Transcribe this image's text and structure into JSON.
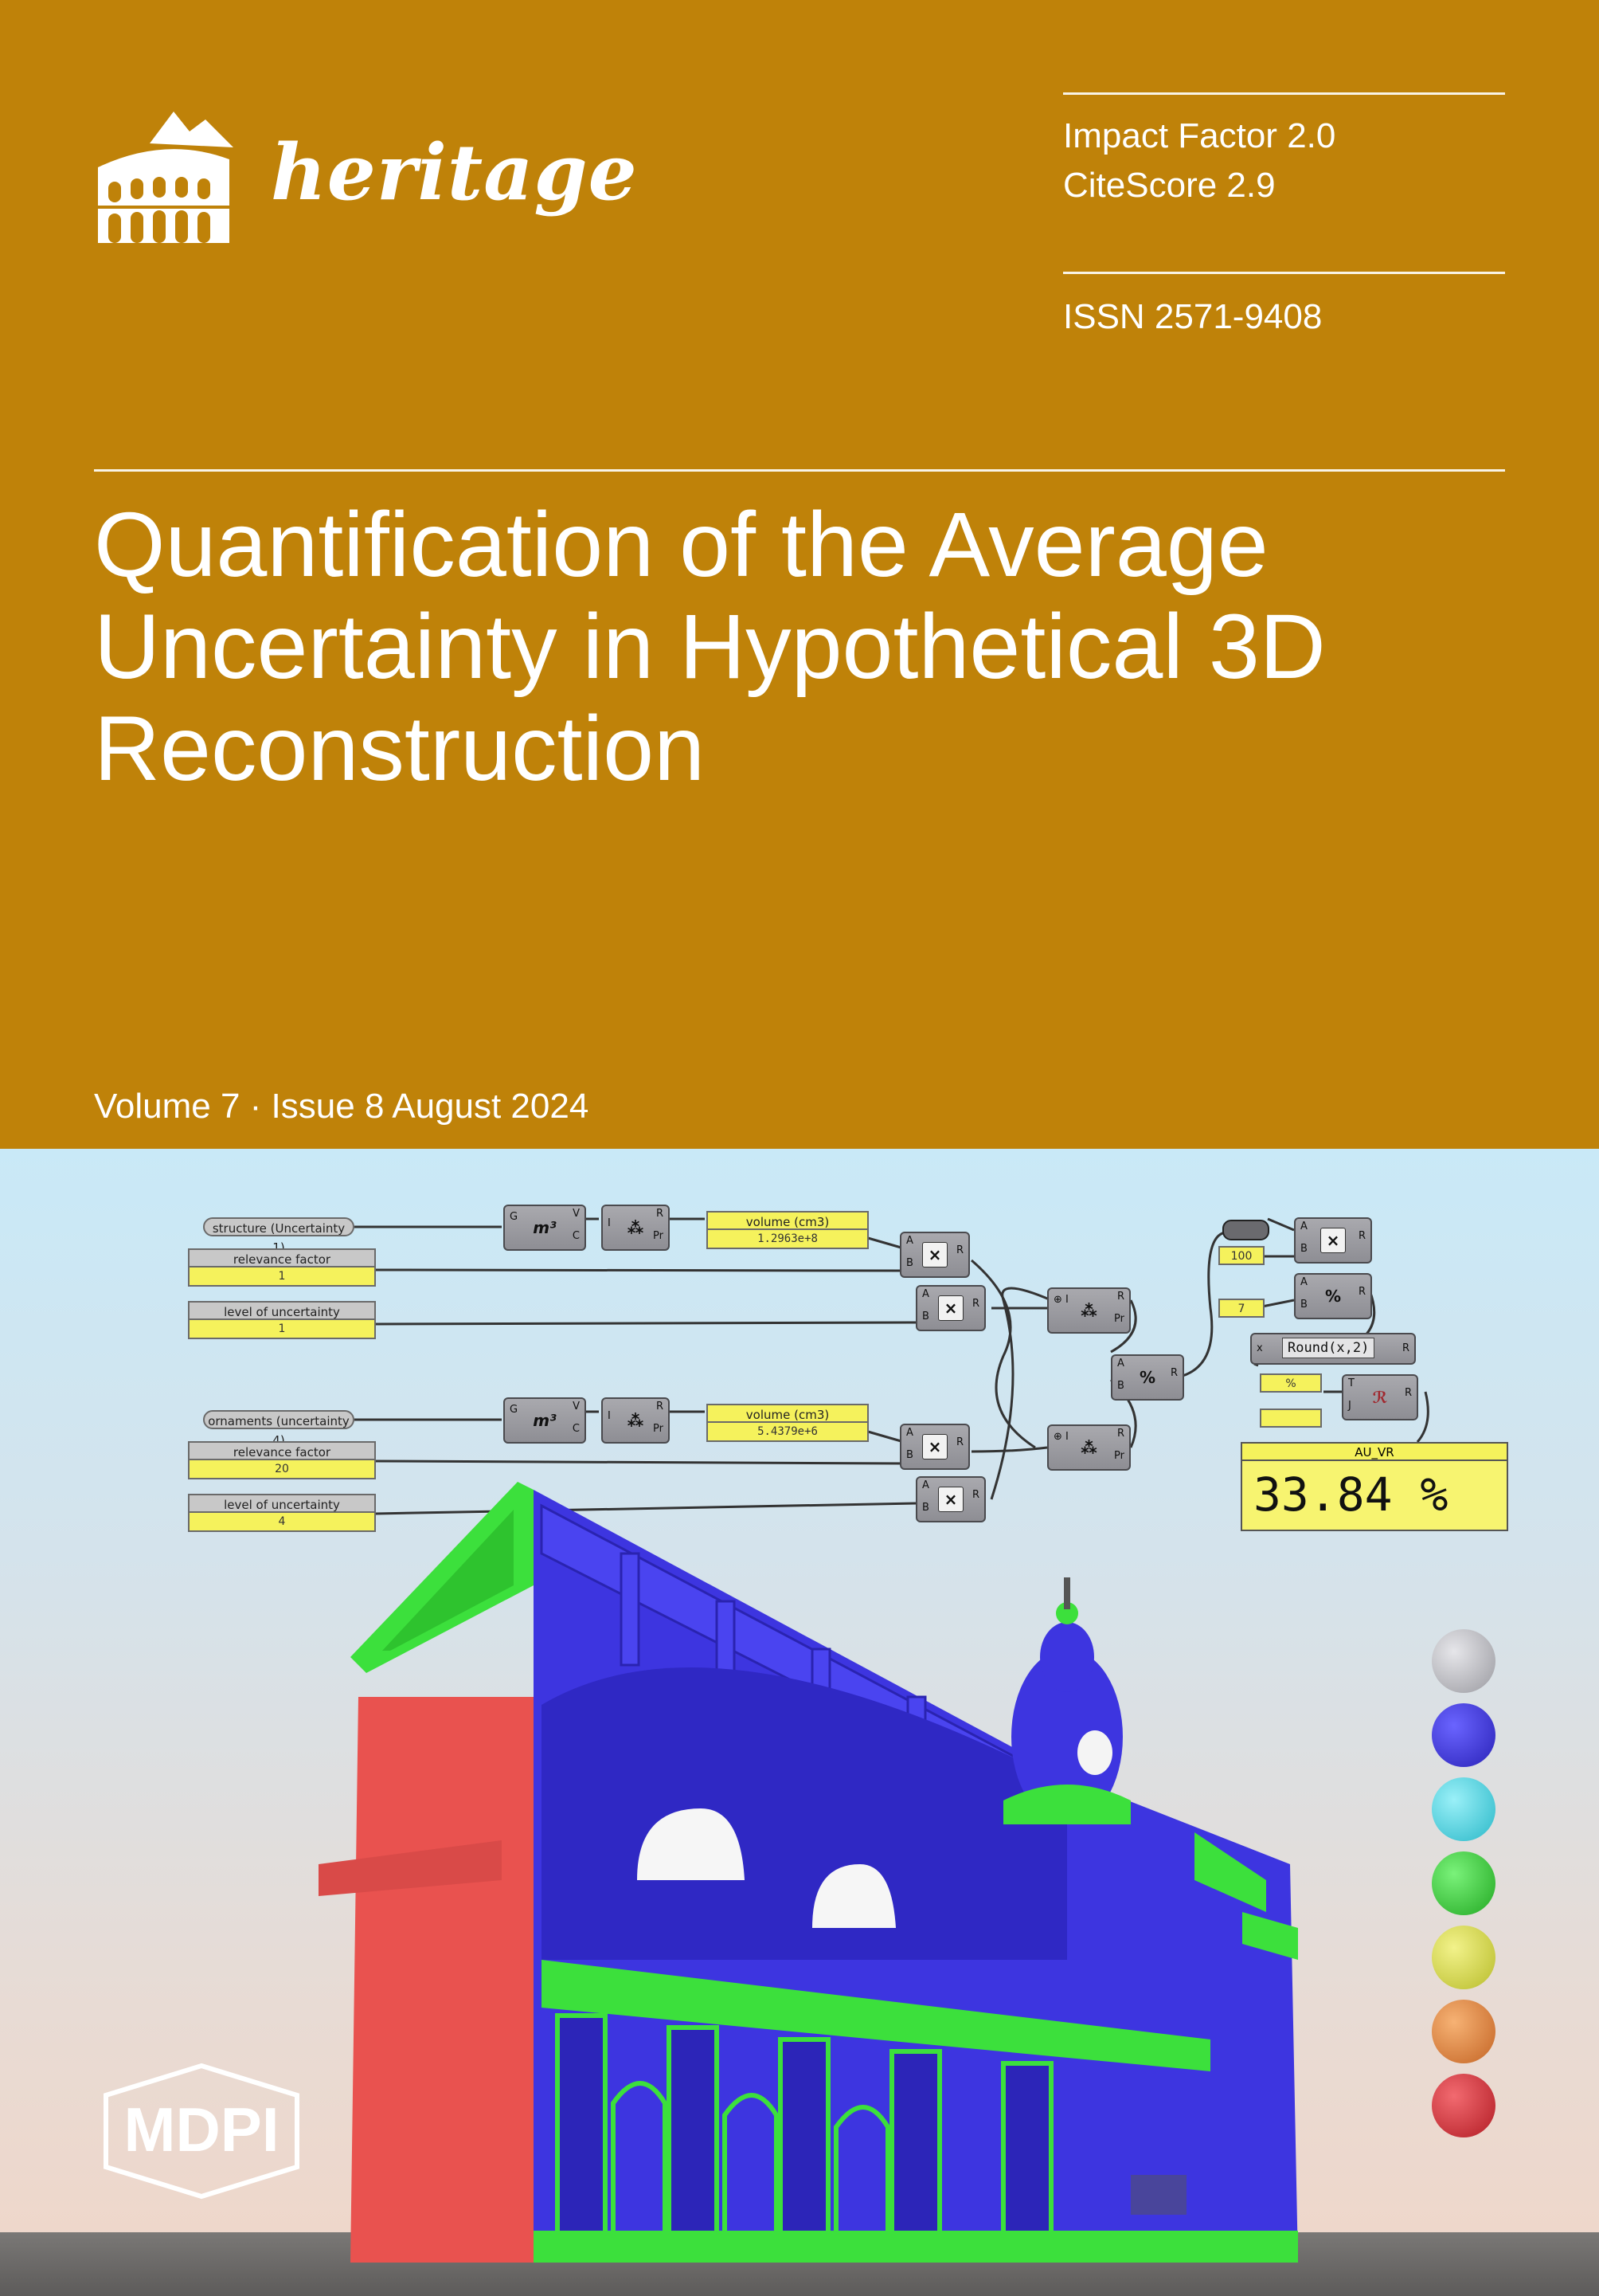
{
  "journal": {
    "name": "heritage"
  },
  "metrics": {
    "impact_factor": "Impact Factor 2.0",
    "citescore": "CiteScore 2.9",
    "issn": "ISSN 2571-9408"
  },
  "article": {
    "title_line1": "Quantification of the Average",
    "title_line2": "Uncertainty in Hypothetical 3D",
    "title_line3": "Reconstruction"
  },
  "issue": {
    "text": "Volume 7 · Issue 8 August 2024"
  },
  "publisher": {
    "name": "MDPI"
  },
  "colors": {
    "cover_band": "#bf8209",
    "accent_blue": "#3d35e0",
    "accent_green": "#3de33d",
    "accent_red": "#ea5257"
  },
  "graph": {
    "structure_label": "structure (Uncertainty 1)",
    "ornaments_label": "ornaments (uncertainty 4)",
    "relevance_factor_label": "relevance factor",
    "level_label": "level of uncertainty",
    "relevance_1": "1",
    "level_1": "1",
    "relevance_2": "20",
    "level_2": "4",
    "volume_label": "volume (cm3)",
    "volume_1": "1.2963e+8",
    "volume_2": "5.4379e+6",
    "const_100": "100",
    "const_7": "7",
    "round_label": "Round(x,2)",
    "percent": "%",
    "result_label": "AU_VR",
    "result_value": "33.84 %"
  },
  "legend_spheres": [
    "#c0c0c4",
    "#3d35e0",
    "#4fd8e8",
    "#3dd63d",
    "#d8e04a",
    "#e08a3c",
    "#d8343c"
  ]
}
